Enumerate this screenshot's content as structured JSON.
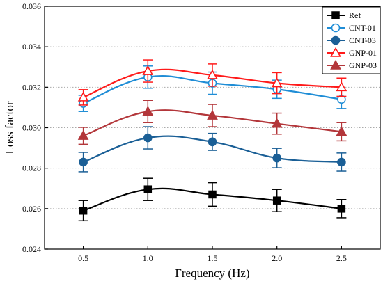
{
  "chart_data": {
    "type": "line",
    "xlabel": "Frequency (Hz)",
    "ylabel": "Loss factor",
    "x": [
      0.5,
      1.0,
      1.5,
      2.0,
      2.5
    ],
    "x_ticks": [
      "0.5",
      "1.0",
      "1.5",
      "2.0",
      "2.5"
    ],
    "xlim": [
      0.2,
      2.8
    ],
    "ylim": [
      0.024,
      0.036
    ],
    "y_ticks": [
      "0.024",
      "0.026",
      "0.028",
      "0.030",
      "0.032",
      "0.034",
      "0.036"
    ],
    "grid": "horizontal dotted",
    "legend_position": "top-right",
    "series": [
      {
        "name": "Ref",
        "color": "#000000",
        "marker": "square",
        "filled": true,
        "values": [
          0.0259,
          0.02695,
          0.0267,
          0.0264,
          0.026
        ],
        "errors": [
          0.0005,
          0.00055,
          0.00058,
          0.00055,
          0.00045
        ]
      },
      {
        "name": "CNT-01",
        "color": "#1f8dd6",
        "marker": "circle",
        "filled": false,
        "values": [
          0.0312,
          0.0325,
          0.0322,
          0.0319,
          0.0314
        ],
        "errors": [
          0.0004,
          0.00055,
          0.00055,
          0.00045,
          0.00045
        ]
      },
      {
        "name": "CNT-03",
        "color": "#1a5f96",
        "marker": "circle",
        "filled": true,
        "values": [
          0.0283,
          0.0295,
          0.0293,
          0.0285,
          0.0283
        ],
        "errors": [
          0.00048,
          0.00055,
          0.00042,
          0.00048,
          0.00045
        ]
      },
      {
        "name": "GNP-01",
        "color": "#ff1a1a",
        "marker": "triangle",
        "filled": false,
        "values": [
          0.0315,
          0.0328,
          0.0326,
          0.0322,
          0.032
        ],
        "errors": [
          0.00038,
          0.00055,
          0.00055,
          0.00052,
          0.00045
        ]
      },
      {
        "name": "GNP-03",
        "color": "#b3363a",
        "marker": "triangle",
        "filled": true,
        "values": [
          0.0296,
          0.0308,
          0.0306,
          0.0302,
          0.0298
        ],
        "errors": [
          0.00042,
          0.00055,
          0.00055,
          0.00052,
          0.00045
        ]
      }
    ]
  }
}
